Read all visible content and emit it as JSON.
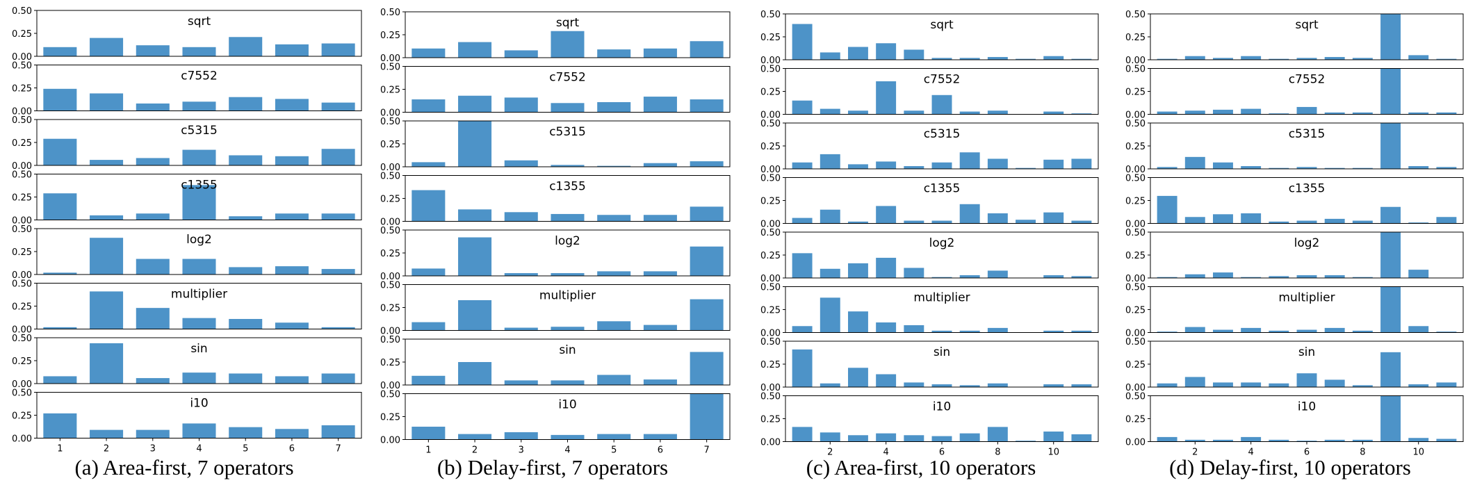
{
  "figure": {
    "captions": [
      "(a) Area-first, 7 operators",
      "(b) Delay-first, 7 operators",
      "(c) Area-first, 10 operators",
      "(d) Delay-first, 10 operators"
    ],
    "bar_color": "#4d93c8"
  },
  "chart_data": [
    {
      "type": "bar",
      "title": "(a) Area-first, 7 operators",
      "categories": [
        1,
        2,
        3,
        4,
        5,
        6,
        7
      ],
      "x_ticks": [
        "1",
        "2",
        "3",
        "4",
        "5",
        "6",
        "7"
      ],
      "y_ticks": [
        "0.00",
        "0.25",
        "0.50"
      ],
      "ylim": [
        0,
        0.5
      ],
      "series": [
        {
          "name": "sqrt",
          "values": [
            0.1,
            0.2,
            0.12,
            0.1,
            0.21,
            0.13,
            0.14
          ]
        },
        {
          "name": "c7552",
          "values": [
            0.24,
            0.19,
            0.08,
            0.1,
            0.15,
            0.13,
            0.09
          ]
        },
        {
          "name": "c5315",
          "values": [
            0.29,
            0.06,
            0.08,
            0.17,
            0.11,
            0.1,
            0.18
          ]
        },
        {
          "name": "c1355",
          "values": [
            0.29,
            0.05,
            0.07,
            0.38,
            0.04,
            0.07,
            0.07
          ]
        },
        {
          "name": "log2",
          "values": [
            0.02,
            0.4,
            0.17,
            0.17,
            0.08,
            0.09,
            0.06
          ]
        },
        {
          "name": "multiplier",
          "values": [
            0.02,
            0.41,
            0.23,
            0.12,
            0.11,
            0.07,
            0.02
          ]
        },
        {
          "name": "sin",
          "values": [
            0.08,
            0.44,
            0.06,
            0.12,
            0.11,
            0.08,
            0.11
          ]
        },
        {
          "name": "i10",
          "values": [
            0.27,
            0.09,
            0.09,
            0.16,
            0.12,
            0.1,
            0.14
          ]
        }
      ]
    },
    {
      "type": "bar",
      "title": "(b) Delay-first, 7 operators",
      "categories": [
        1,
        2,
        3,
        4,
        5,
        6,
        7
      ],
      "x_ticks": [
        "1",
        "2",
        "3",
        "4",
        "5",
        "6",
        "7"
      ],
      "y_ticks": [
        "0.00",
        "0.25",
        "0.50"
      ],
      "ylim": [
        0,
        0.5
      ],
      "series": [
        {
          "name": "sqrt",
          "values": [
            0.1,
            0.17,
            0.08,
            0.29,
            0.09,
            0.1,
            0.18
          ]
        },
        {
          "name": "c7552",
          "values": [
            0.14,
            0.18,
            0.16,
            0.1,
            0.11,
            0.17,
            0.14
          ]
        },
        {
          "name": "c5315",
          "values": [
            0.05,
            0.5,
            0.07,
            0.02,
            0.01,
            0.04,
            0.06
          ]
        },
        {
          "name": "c1355",
          "values": [
            0.34,
            0.13,
            0.1,
            0.08,
            0.07,
            0.07,
            0.16
          ]
        },
        {
          "name": "log2",
          "values": [
            0.08,
            0.42,
            0.03,
            0.03,
            0.05,
            0.05,
            0.32
          ]
        },
        {
          "name": "multiplier",
          "values": [
            0.09,
            0.33,
            0.03,
            0.04,
            0.1,
            0.06,
            0.34
          ]
        },
        {
          "name": "sin",
          "values": [
            0.1,
            0.25,
            0.05,
            0.05,
            0.11,
            0.06,
            0.36
          ]
        },
        {
          "name": "i10",
          "values": [
            0.14,
            0.06,
            0.08,
            0.05,
            0.06,
            0.06,
            0.5
          ]
        }
      ]
    },
    {
      "type": "bar",
      "title": "(c) Area-first, 10 operators",
      "categories": [
        1,
        2,
        3,
        4,
        5,
        6,
        7,
        8,
        9,
        10,
        11
      ],
      "x_ticks": [
        "2",
        "4",
        "6",
        "8",
        "10"
      ],
      "y_ticks": [
        "0.00",
        "0.25",
        "0.50"
      ],
      "ylim": [
        0,
        0.5
      ],
      "series": [
        {
          "name": "sqrt",
          "values": [
            0.39,
            0.08,
            0.14,
            0.18,
            0.11,
            0.02,
            0.02,
            0.03,
            0.01,
            0.04,
            0.01
          ]
        },
        {
          "name": "c7552",
          "values": [
            0.15,
            0.06,
            0.04,
            0.36,
            0.04,
            0.21,
            0.03,
            0.04,
            0.0,
            0.03,
            0.01
          ]
        },
        {
          "name": "c5315",
          "values": [
            0.07,
            0.16,
            0.05,
            0.08,
            0.03,
            0.07,
            0.18,
            0.11,
            0.01,
            0.1,
            0.11
          ]
        },
        {
          "name": "c1355",
          "values": [
            0.06,
            0.15,
            0.02,
            0.19,
            0.03,
            0.03,
            0.21,
            0.11,
            0.04,
            0.12,
            0.03
          ]
        },
        {
          "name": "log2",
          "values": [
            0.27,
            0.1,
            0.16,
            0.22,
            0.11,
            0.01,
            0.03,
            0.08,
            0.0,
            0.03,
            0.02
          ]
        },
        {
          "name": "multiplier",
          "values": [
            0.07,
            0.38,
            0.23,
            0.11,
            0.08,
            0.02,
            0.02,
            0.05,
            0.0,
            0.02,
            0.02
          ]
        },
        {
          "name": "sin",
          "values": [
            0.41,
            0.04,
            0.21,
            0.14,
            0.05,
            0.03,
            0.02,
            0.04,
            0.0,
            0.03,
            0.03
          ]
        },
        {
          "name": "i10",
          "values": [
            0.16,
            0.1,
            0.07,
            0.09,
            0.07,
            0.06,
            0.09,
            0.16,
            0.01,
            0.11,
            0.08
          ]
        }
      ]
    },
    {
      "type": "bar",
      "title": "(d) Delay-first, 10 operators",
      "categories": [
        1,
        2,
        3,
        4,
        5,
        6,
        7,
        8,
        9,
        10,
        11
      ],
      "x_ticks": [
        "2",
        "4",
        "6",
        "8",
        "10"
      ],
      "y_ticks": [
        "0.00",
        "0.25",
        "0.50"
      ],
      "ylim": [
        0,
        0.5
      ],
      "series": [
        {
          "name": "sqrt",
          "values": [
            0.01,
            0.04,
            0.02,
            0.04,
            0.01,
            0.02,
            0.03,
            0.02,
            0.5,
            0.05,
            0.01
          ]
        },
        {
          "name": "c7552",
          "values": [
            0.03,
            0.04,
            0.05,
            0.06,
            0.01,
            0.08,
            0.02,
            0.02,
            0.5,
            0.02,
            0.02
          ]
        },
        {
          "name": "c5315",
          "values": [
            0.02,
            0.13,
            0.07,
            0.03,
            0.01,
            0.02,
            0.01,
            0.01,
            0.5,
            0.03,
            0.02
          ]
        },
        {
          "name": "c1355",
          "values": [
            0.3,
            0.07,
            0.1,
            0.11,
            0.02,
            0.03,
            0.05,
            0.03,
            0.18,
            0.01,
            0.07
          ]
        },
        {
          "name": "log2",
          "values": [
            0.01,
            0.04,
            0.06,
            0.01,
            0.02,
            0.03,
            0.03,
            0.01,
            0.5,
            0.09,
            0.0
          ]
        },
        {
          "name": "multiplier",
          "values": [
            0.01,
            0.06,
            0.03,
            0.05,
            0.02,
            0.03,
            0.05,
            0.02,
            0.5,
            0.07,
            0.01
          ]
        },
        {
          "name": "sin",
          "values": [
            0.04,
            0.11,
            0.05,
            0.05,
            0.04,
            0.15,
            0.08,
            0.02,
            0.38,
            0.03,
            0.05
          ]
        },
        {
          "name": "i10",
          "values": [
            0.05,
            0.02,
            0.02,
            0.05,
            0.02,
            0.01,
            0.02,
            0.02,
            0.5,
            0.04,
            0.03
          ]
        }
      ]
    }
  ]
}
